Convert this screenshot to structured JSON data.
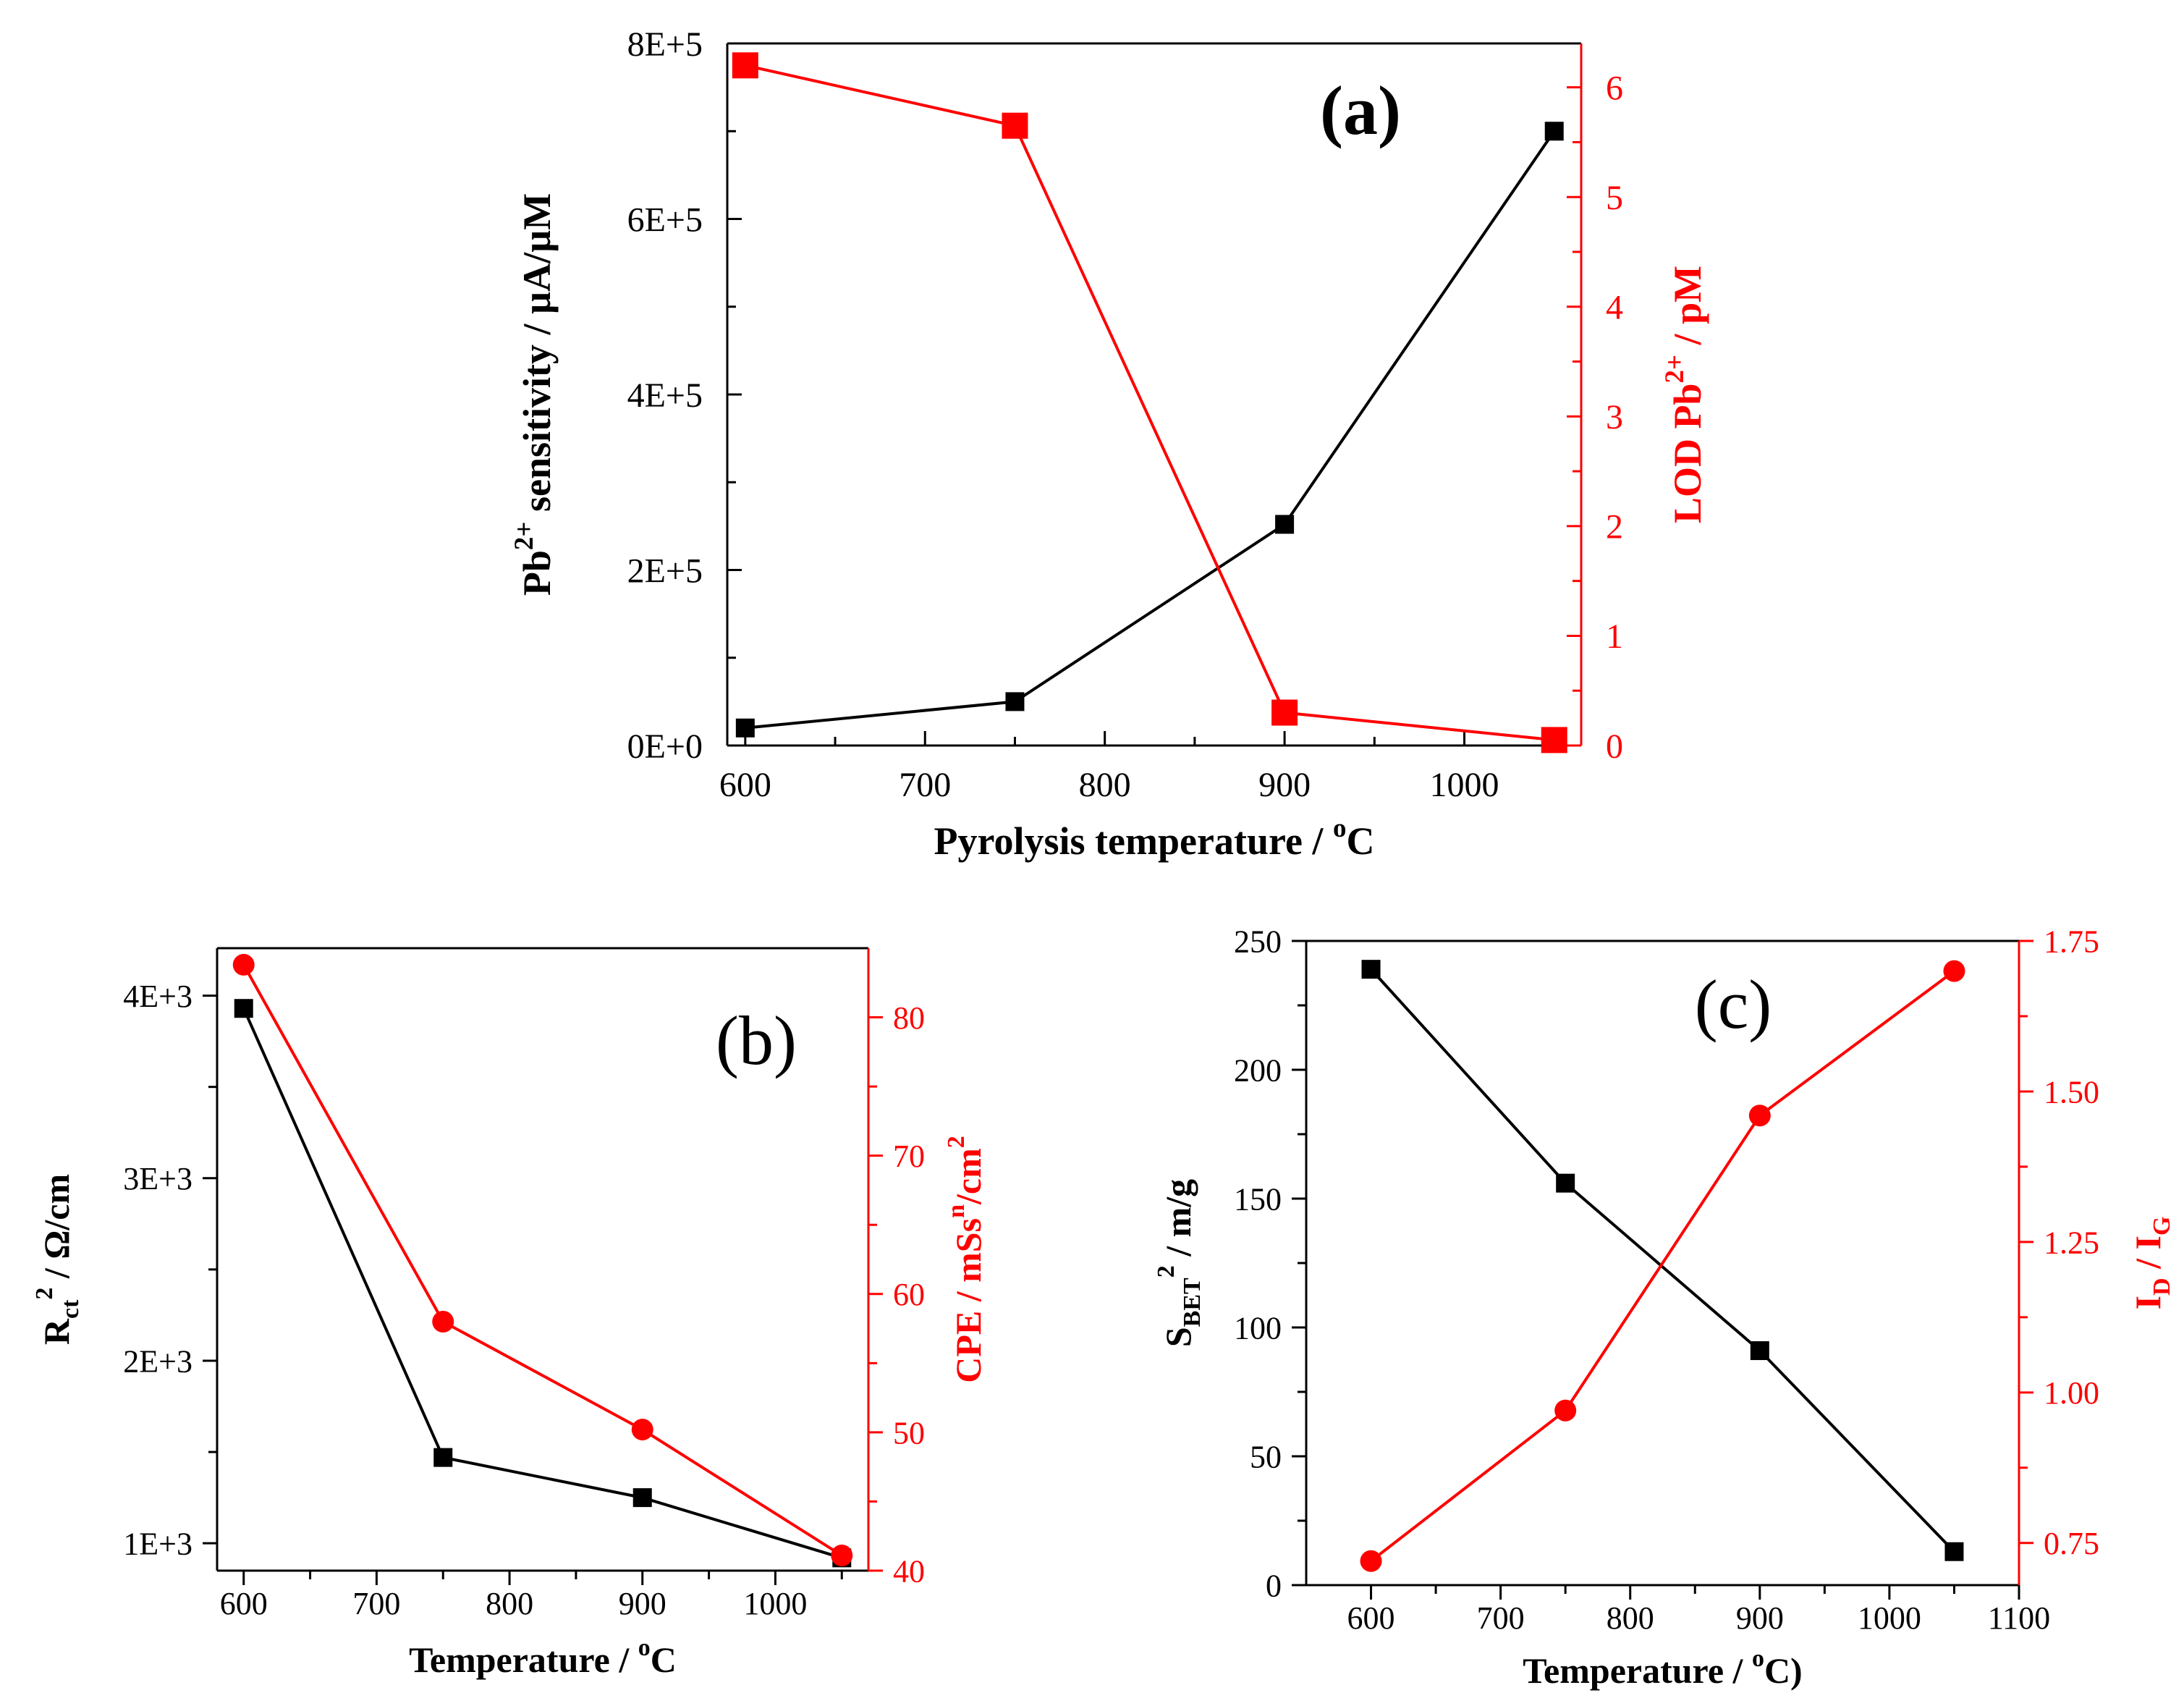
{
  "colors": {
    "left_series": "#000000",
    "right_series": "#ff0000"
  },
  "chart_data": [
    {
      "panel": "(a)",
      "type": "line",
      "x": [
        600,
        750,
        900,
        1050
      ],
      "xlim": [
        590,
        1065
      ],
      "xticks": [
        600,
        700,
        800,
        900,
        1000
      ],
      "xlabel": {
        "main": "Pyrolysis temperature   /   ",
        "sup": "o",
        "tail": "C"
      },
      "left_axis": {
        "ylim": [
          0,
          800000
        ],
        "ticks": [
          0,
          200000,
          400000,
          600000,
          800000
        ],
        "tick_labels": [
          "0E+0",
          "2E+5",
          "4E+5",
          "6E+5",
          "8E+5"
        ],
        "label": {
          "main": "Pb",
          "sup": "2+",
          "tail": " sensitivity   /   µA/µM"
        }
      },
      "right_axis": {
        "ylim": [
          0,
          6.4
        ],
        "ticks": [
          0,
          1,
          2,
          3,
          4,
          5,
          6
        ],
        "tick_labels": [
          "0",
          "1",
          "2",
          "3",
          "4",
          "5",
          "6"
        ],
        "label": {
          "main": "LOD Pb",
          "sup": "2+",
          "tail": "   /   pM"
        }
      },
      "series": [
        {
          "axis": "left",
          "marker": "square",
          "values": [
            20000,
            50000,
            252000,
            700000
          ]
        },
        {
          "axis": "right",
          "marker": "square",
          "values": [
            6.2,
            5.65,
            0.3,
            0.05
          ]
        }
      ]
    },
    {
      "panel": "(b)",
      "type": "line",
      "x": [
        600,
        750,
        900,
        1050
      ],
      "xlim": [
        580,
        1070
      ],
      "xticks": [
        600,
        700,
        800,
        900,
        1000
      ],
      "xlabel": {
        "main": "Temperature   /   ",
        "sup": "o",
        "tail": "C"
      },
      "left_axis": {
        "ylim": [
          850,
          4260
        ],
        "ticks": [
          1000,
          2000,
          3000,
          4000
        ],
        "tick_labels": [
          "1E+3",
          "2E+3",
          "3E+3",
          "4E+3"
        ],
        "label": {
          "main": "R",
          "sub": "ct",
          "tail": "   /   Ω/cm",
          "sup": "2"
        }
      },
      "right_axis": {
        "ylim": [
          40,
          85
        ],
        "ticks": [
          40,
          50,
          60,
          70,
          80
        ],
        "tick_labels": [
          "40",
          "50",
          "60",
          "70",
          "80"
        ],
        "label": {
          "main": "CPE   /   mSs",
          "sup": "n",
          "tail": "/cm",
          "sup2": "2"
        }
      },
      "series": [
        {
          "axis": "left",
          "marker": "square",
          "values": [
            3930,
            1470,
            1250,
            920
          ]
        },
        {
          "axis": "right",
          "marker": "circle",
          "values": [
            83.8,
            58,
            50.2,
            41.1
          ]
        }
      ]
    },
    {
      "panel": "(c)",
      "type": "line",
      "x": [
        600,
        750,
        900,
        1050
      ],
      "xlim": [
        550,
        1100
      ],
      "xticks": [
        600,
        700,
        800,
        900,
        1000,
        1100
      ],
      "xlabel": {
        "main": "Temperature   /   ",
        "sup": "o",
        "tail": "C)"
      },
      "left_axis": {
        "ylim": [
          0,
          250
        ],
        "ticks": [
          0,
          50,
          100,
          150,
          200,
          250
        ],
        "tick_labels": [
          "0",
          "50",
          "100",
          "150",
          "200",
          "250"
        ],
        "label": {
          "main": "S",
          "sub": "BET",
          "tail": "   /   m",
          "sup": "2",
          "tail2": "/g"
        }
      },
      "right_axis": {
        "ylim": [
          0.68,
          1.75
        ],
        "ticks": [
          0.75,
          1.0,
          1.25,
          1.5,
          1.75
        ],
        "tick_labels": [
          "0.75",
          "1.00",
          "1.25",
          "1.50",
          "1.75"
        ],
        "label": {
          "main": "I",
          "sub": "D",
          "tail": " / I",
          "sub2": "G"
        }
      },
      "series": [
        {
          "axis": "left",
          "marker": "square",
          "values": [
            239,
            156,
            91,
            13
          ]
        },
        {
          "axis": "right",
          "marker": "circle",
          "values": [
            0.72,
            0.97,
            1.46,
            1.7
          ]
        }
      ]
    }
  ]
}
